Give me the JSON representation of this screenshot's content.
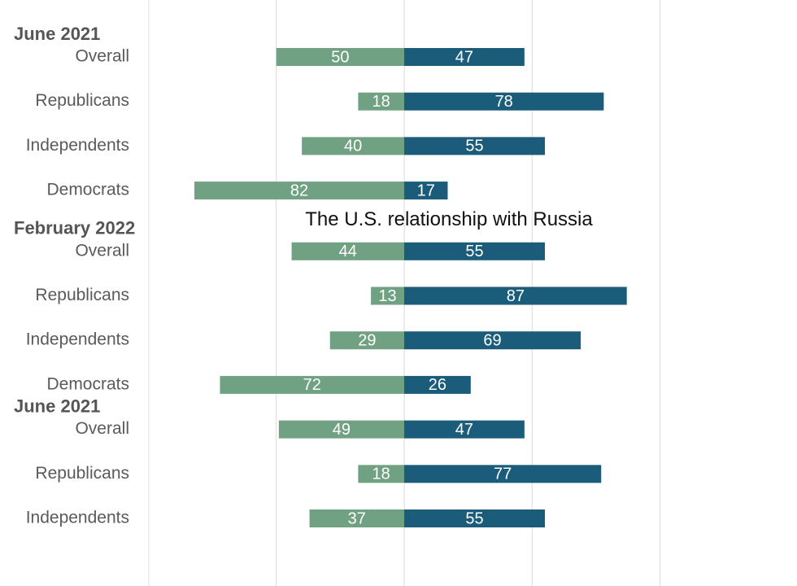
{
  "colors": {
    "left": "#71a183",
    "right": "#1a5c7a",
    "grid": "#d9d9d9",
    "axis": "#e2e2e2"
  },
  "sections": [
    {
      "title": "",
      "groups": [
        {
          "label": "June 2021",
          "rows": [
            {
              "category": "Overall",
              "left": 50,
              "right": 47
            },
            {
              "category": "Republicans",
              "left": 18,
              "right": 78
            },
            {
              "category": "Independents",
              "left": 40,
              "right": 55
            },
            {
              "category": "Democrats",
              "left": 82,
              "right": 17
            }
          ]
        }
      ]
    },
    {
      "title": "The U.S. relationship with Russia",
      "groups": [
        {
          "label": "February 2022",
          "rows": [
            {
              "category": "Overall",
              "left": 44,
              "right": 55
            },
            {
              "category": "Republicans",
              "left": 13,
              "right": 87
            },
            {
              "category": "Independents",
              "left": 29,
              "right": 69
            },
            {
              "category": "Democrats",
              "left": 72,
              "right": 26
            }
          ]
        },
        {
          "label": "June 2021",
          "rows": [
            {
              "category": "Overall",
              "left": 49,
              "right": 47
            },
            {
              "category": "Republicans",
              "left": 18,
              "right": 77
            },
            {
              "category": "Independents",
              "left": 37,
              "right": 55
            }
          ]
        }
      ]
    }
  ],
  "chart_data": {
    "type": "bar",
    "orientation": "horizontal-diverging",
    "grid": true,
    "xlim": [
      -100,
      100
    ],
    "title": "The U.S. relationship with Russia",
    "categories": [
      "June 2021 Overall",
      "June 2021 Republicans",
      "June 2021 Independents",
      "June 2021 Democrats",
      "February 2022 Overall",
      "February 2022 Republicans",
      "February 2022 Independents",
      "February 2022 Democrats",
      "June 2021 Overall",
      "June 2021 Republicans",
      "June 2021 Independents"
    ],
    "series": [
      {
        "values": [
          50,
          18,
          40,
          82,
          44,
          13,
          29,
          72,
          49,
          18,
          37
        ]
      },
      {
        "values": [
          47,
          78,
          55,
          17,
          55,
          87,
          69,
          26,
          47,
          77,
          55
        ]
      }
    ]
  }
}
